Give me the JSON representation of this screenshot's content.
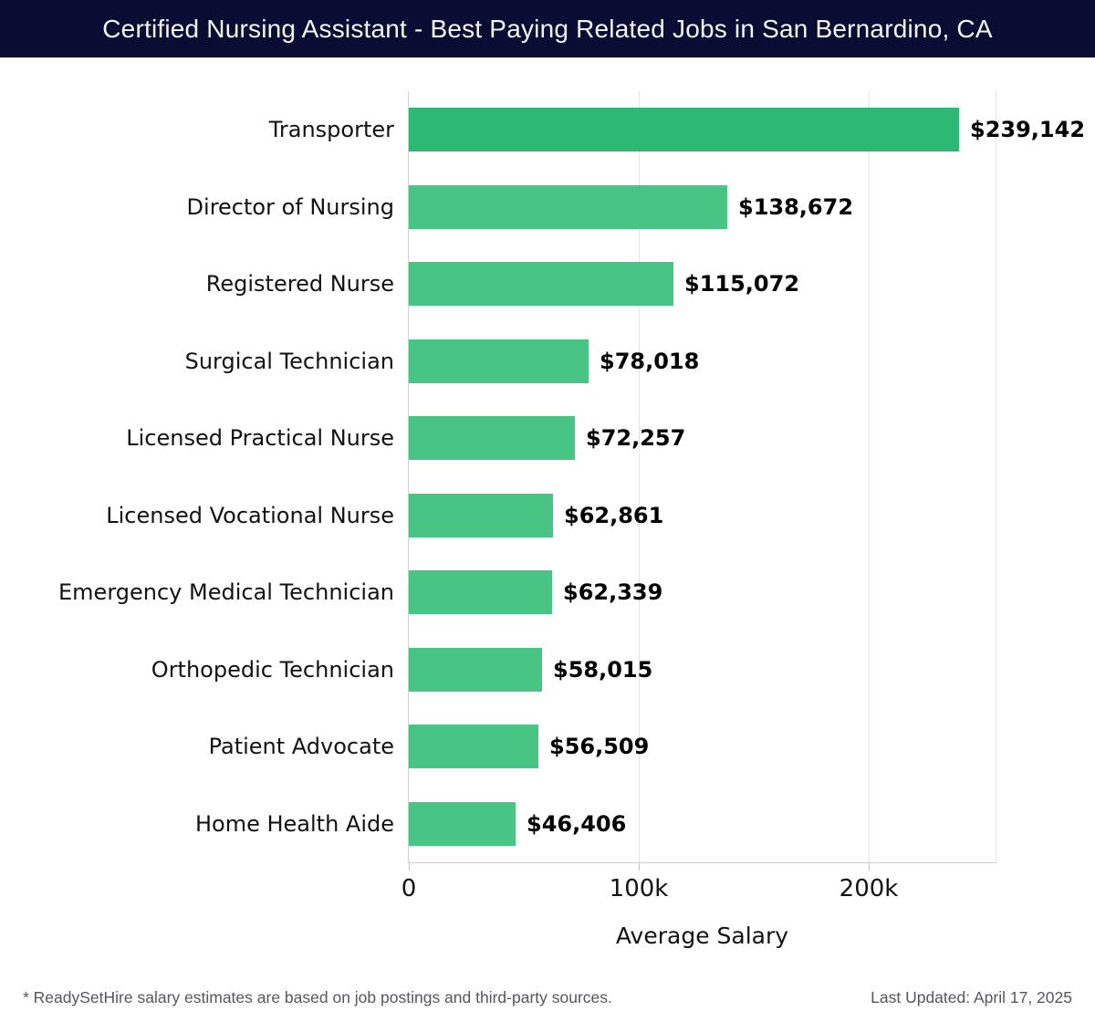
{
  "header": {
    "title": "Certified Nursing Assistant - Best Paying Related Jobs in San Bernardino, CA",
    "background": "#0a0d33",
    "text_color": "#f4f5f9"
  },
  "chart_data": {
    "type": "bar",
    "orientation": "horizontal",
    "title": "Certified Nursing Assistant - Best Paying Related Jobs in San Bernardino, CA",
    "categories": [
      "Transporter",
      "Director of Nursing",
      "Registered Nurse",
      "Surgical Technician",
      "Licensed Practical Nurse",
      "Licensed Vocational Nurse",
      "Emergency Medical Technician",
      "Orthopedic Technician",
      "Patient Advocate",
      "Home Health Aide"
    ],
    "values": [
      239142,
      138672,
      115072,
      78018,
      72257,
      62861,
      62339,
      58015,
      56509,
      46406
    ],
    "value_labels": [
      "$239,142",
      "$138,672",
      "$115,072",
      "$78,018",
      "$72,257",
      "$62,861",
      "$62,339",
      "$58,015",
      "$56,509",
      "$46,406"
    ],
    "xlabel": "Average Salary",
    "x_ticks": [
      {
        "label": "0",
        "value": 0
      },
      {
        "label": "100k",
        "value": 100000
      },
      {
        "label": "200k",
        "value": 200000
      }
    ],
    "xlim": [
      0,
      255000
    ],
    "grid": "vertical",
    "legend": "none",
    "bar_colors": {
      "highlight": "#2db873",
      "default": "#48c485"
    }
  },
  "footer": {
    "note": "* ReadySetHire salary estimates are based on job postings and third-party sources.",
    "last_updated": "Last Updated: April 17, 2025"
  }
}
